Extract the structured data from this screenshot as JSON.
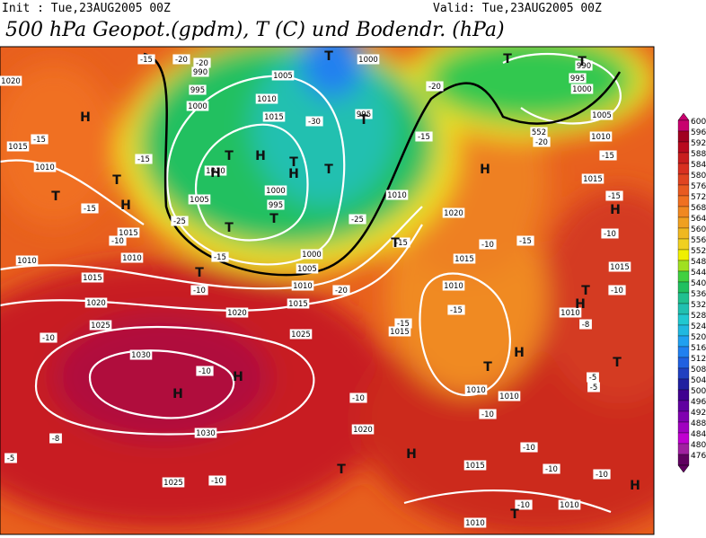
{
  "header": {
    "init": "Init : Tue,23AUG2005 00Z",
    "valid": "Valid: Tue,23AUG2005 00Z",
    "title": "500 hPa Geopot.(gpdm), T (C) und Bodendr. (hPa)"
  },
  "colorbar": {
    "labels": [
      "600",
      "596",
      "592",
      "588",
      "584",
      "580",
      "576",
      "572",
      "568",
      "564",
      "560",
      "556",
      "552",
      "548",
      "544",
      "540",
      "536",
      "532",
      "528",
      "524",
      "520",
      "516",
      "512",
      "508",
      "504",
      "500",
      "496",
      "492",
      "488",
      "484",
      "480",
      "476"
    ]
  },
  "map": {
    "isobar_labels": [
      "1020",
      "990",
      "995",
      "1000",
      "1005",
      "1010",
      "1015",
      "1000",
      "995",
      "1010",
      "1005",
      "1000",
      "995",
      "1000",
      "1005",
      "1010",
      "1015",
      "1020",
      "1025",
      "1030",
      "1025",
      "1020",
      "1015",
      "1010",
      "1010",
      "1015",
      "1010",
      "1015",
      "1010",
      "1020",
      "1015",
      "1010",
      "1015",
      "1010",
      "1010",
      "1020",
      "1030",
      "1025",
      "1015",
      "1010",
      "1010",
      "1010",
      "1015",
      "1015",
      "1010",
      "1005",
      "1000",
      "995",
      "990",
      "552"
    ],
    "temperature_labels": [
      "-15",
      "-20",
      "-20",
      "-15",
      "-15",
      "-15",
      "-10",
      "-15",
      "-10",
      "-25",
      "-30",
      "-25",
      "-20",
      "-20",
      "-15",
      "-20",
      "-15",
      "-15",
      "-10",
      "-15",
      "-10",
      "-15",
      "-15",
      "-15",
      "-10",
      "-8",
      "-10",
      "-10",
      "-10",
      "-10",
      "-5",
      "-5",
      "-5",
      "-10",
      "-10",
      "-10",
      "-10",
      "-10",
      "-8"
    ],
    "pressure_centers": [
      "H",
      "T",
      "T",
      "H",
      "H",
      "H",
      "T",
      "H",
      "T",
      "T",
      "T",
      "T",
      "T",
      "T",
      "T",
      "H",
      "H",
      "T",
      "T",
      "H",
      "H",
      "T",
      "T",
      "H",
      "H",
      "T",
      "H",
      "T",
      "H",
      "T",
      "T"
    ]
  }
}
